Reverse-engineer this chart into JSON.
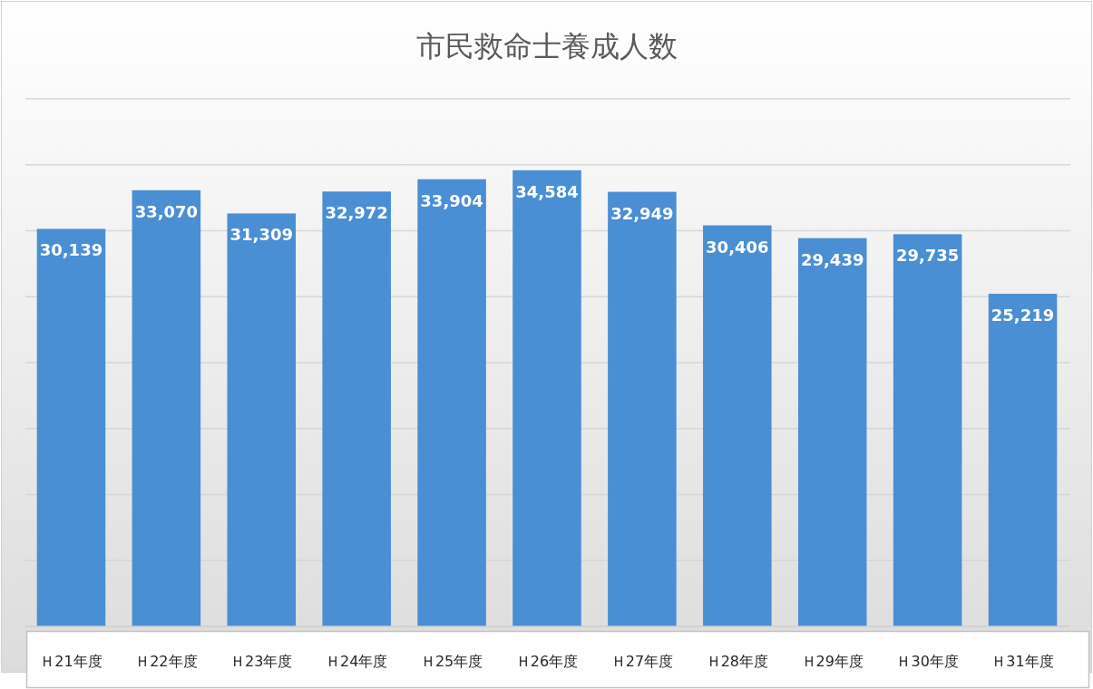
{
  "chart_data": {
    "type": "bar",
    "title": "市民救命士養成人数",
    "categories": [
      "Ｈ21年度",
      "Ｈ22年度",
      "Ｈ23年度",
      "Ｈ24年度",
      "Ｈ25年度",
      "Ｈ26年度",
      "Ｈ27年度",
      "Ｈ28年度",
      "Ｈ29年度",
      "Ｈ30年度",
      "Ｈ31年度"
    ],
    "values": [
      30139,
      33070,
      31309,
      32972,
      33904,
      34584,
      32949,
      30406,
      29439,
      29735,
      25219
    ],
    "value_labels": [
      "30,139",
      "33,070",
      "31,309",
      "32,972",
      "33,904",
      "34,584",
      "32,949",
      "30,406",
      "29,439",
      "29,735",
      "25,219"
    ],
    "color": "#4a8ed4",
    "ylim": [
      0,
      40000
    ],
    "yticks": [
      {
        "value": 0,
        "label": null
      },
      {
        "value": 5000,
        "label": null
      },
      {
        "value": 10000,
        "label": null
      },
      {
        "value": 15000,
        "label": null
      },
      {
        "value": 20000,
        "label": null
      },
      {
        "value": 25000,
        "label": null
      },
      {
        "value": 30000,
        "label": null
      },
      {
        "value": 35000,
        "label": null
      },
      {
        "value": 40000,
        "label": null
      }
    ],
    "grid": "y",
    "tick_labels": "x"
  }
}
